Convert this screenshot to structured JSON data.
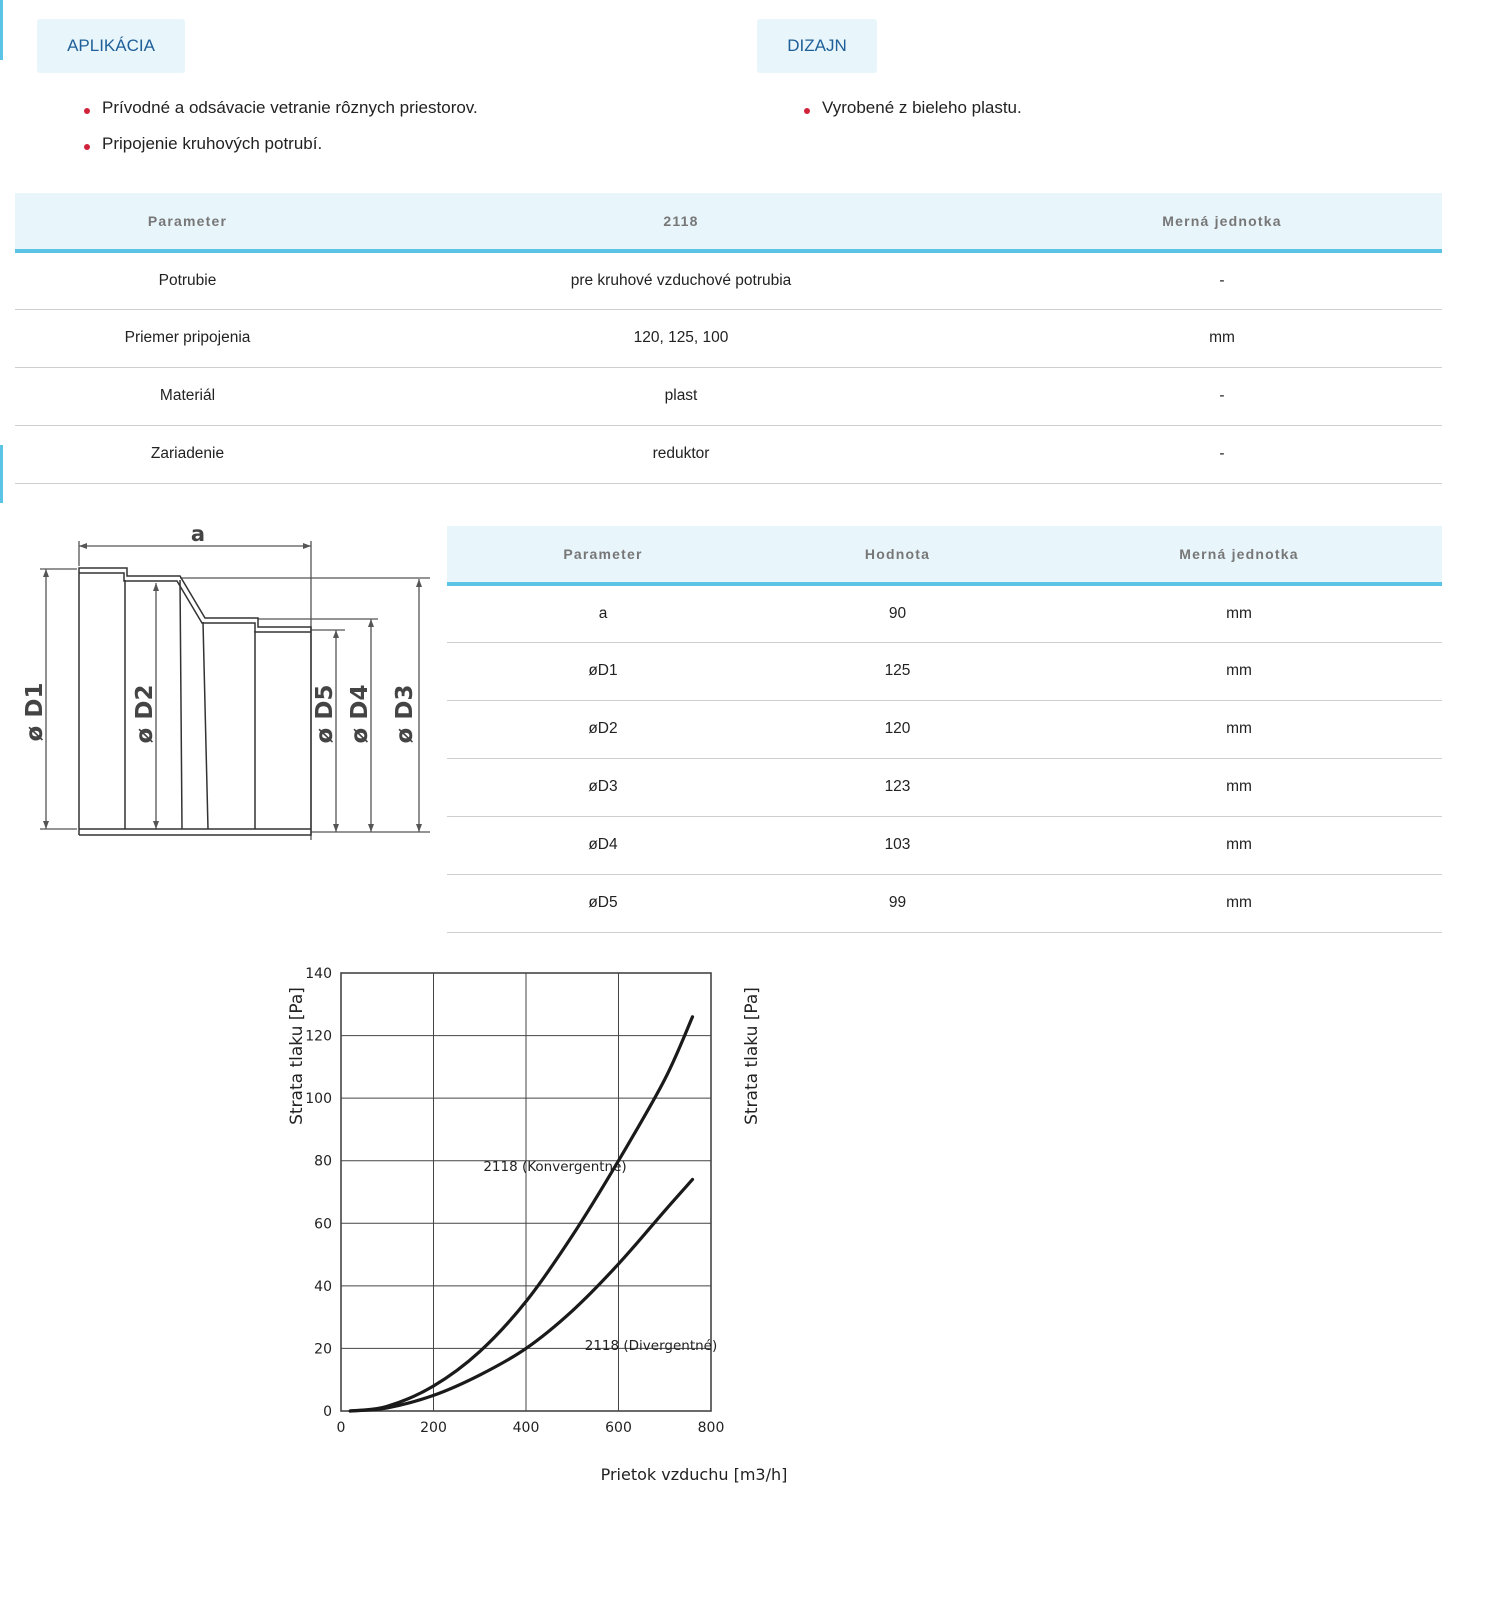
{
  "tabs": {
    "application": "APLIKÁCIA",
    "design": "DIZAJN"
  },
  "application_list": [
    "Prívodné a odsávacie vetranie rôznych priestorov.",
    "Pripojenie kruhových potrubí."
  ],
  "design_list": [
    "Vyrobené z bieleho plastu."
  ],
  "spec_table": {
    "headers": [
      "Parameter",
      "2118",
      "Merná jednotka"
    ],
    "rows": [
      [
        "Potrubie",
        "pre kruhové vzduchové potrubia",
        "-"
      ],
      [
        "Priemer pripojenia",
        "120, 125, 100",
        "mm"
      ],
      [
        "Materiál",
        "plast",
        "-"
      ],
      [
        "Zariadenie",
        "reduktor",
        "-"
      ]
    ]
  },
  "dims_table": {
    "headers": [
      "Parameter",
      "Hodnota",
      "Merná jednotka"
    ],
    "rows": [
      [
        "a",
        "90",
        "mm"
      ],
      [
        "øD1",
        "125",
        "mm"
      ],
      [
        "øD2",
        "120",
        "mm"
      ],
      [
        "øD3",
        "123",
        "mm"
      ],
      [
        "øD4",
        "103",
        "mm"
      ],
      [
        "øD5",
        "99",
        "mm"
      ]
    ]
  },
  "drawing": {
    "a": "a",
    "d1": "ø D1",
    "d2": "ø D2",
    "d3": "ø D3",
    "d4": "ø D4",
    "d5": "ø D5"
  },
  "colors": {
    "accent": "#5bc3e6",
    "header_bg": "#e8f5fb",
    "tab_text": "#1f5f99",
    "bullet": "#d0223b"
  },
  "chart_data": {
    "type": "line",
    "title": "",
    "xlabel": "Prietok vzduchu [m3/h]",
    "ylabel": "Strata tlaku [Pa]",
    "xlim": [
      0,
      800
    ],
    "ylim": [
      0,
      140
    ],
    "xticks": [
      0,
      200,
      400,
      600,
      800
    ],
    "yticks": [
      0,
      20,
      40,
      60,
      80,
      100,
      120,
      140
    ],
    "grid": true,
    "series": [
      {
        "name": "2118 (Konvergentné)",
        "x": [
          20,
          100,
          200,
          300,
          400,
          500,
          600,
          700,
          760
        ],
        "y": [
          0,
          1.5,
          8,
          19,
          35,
          56,
          80,
          106,
          126
        ]
      },
      {
        "name": "2118 (Divergentné)",
        "x": [
          20,
          100,
          200,
          300,
          400,
          500,
          600,
          700,
          760
        ],
        "y": [
          0,
          1,
          5,
          11.5,
          20,
          32,
          47,
          64,
          74
        ]
      }
    ]
  }
}
